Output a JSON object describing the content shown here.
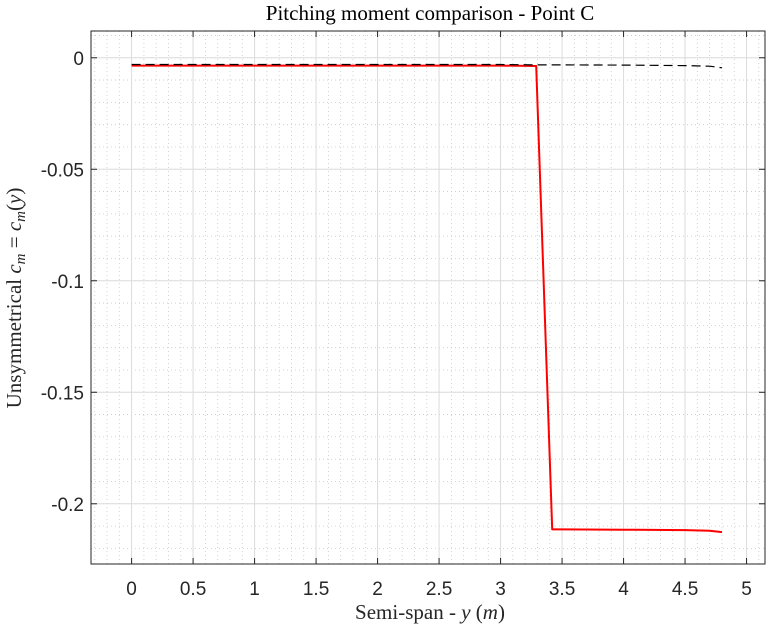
{
  "chart_data": {
    "type": "line",
    "title": "Pitching moment comparison - Point C",
    "xlabel": {
      "prefix": "Semi-span - ",
      "var": "y",
      "unit_open": " (",
      "unit": "m",
      "unit_close": ")"
    },
    "ylabel": {
      "prefix": "Unsymmetrical ",
      "lhs_base": "c",
      "lhs_sub": "m",
      "eq": " = ",
      "rhs_base": "c",
      "rhs_sub": "m",
      "arg_open": "(",
      "arg": "y",
      "arg_close": ")"
    },
    "xlim": [
      -0.33,
      5.15
    ],
    "ylim": [
      -0.227,
      0.012
    ],
    "x_ticks": [
      0,
      0.5,
      1,
      1.5,
      2,
      2.5,
      3,
      3.5,
      4,
      4.5,
      5
    ],
    "x_tick_labels": [
      "0",
      "0.5",
      "1",
      "1.5",
      "2",
      "2.5",
      "3",
      "3.5",
      "4",
      "4.5",
      "5"
    ],
    "y_ticks": [
      0,
      -0.05,
      -0.1,
      -0.15,
      -0.2
    ],
    "y_tick_labels": [
      "0",
      "-0.05",
      "-0.1",
      "-0.15",
      "-0.2"
    ],
    "grid": "major and minor",
    "series": [
      {
        "color": "#ff0000",
        "style": "solid",
        "x": [
          0,
          0.5,
          1,
          1.5,
          2,
          2.5,
          3,
          3.29,
          3.42,
          3.5,
          4,
          4.5,
          4.7,
          4.8
        ],
        "y": [
          -0.0035,
          -0.0035,
          -0.0035,
          -0.0035,
          -0.0035,
          -0.0035,
          -0.0035,
          -0.0037,
          -0.2115,
          -0.2115,
          -0.2116,
          -0.2118,
          -0.2121,
          -0.2127
        ]
      },
      {
        "color": "#000000",
        "style": "dashed",
        "x": [
          0,
          0.5,
          1,
          1.5,
          2,
          2.5,
          3,
          3.29,
          3.5,
          4,
          4.5,
          4.7,
          4.8
        ],
        "y": [
          -0.003,
          -0.003,
          -0.003,
          -0.003,
          -0.003,
          -0.003,
          -0.003,
          -0.0032,
          -0.0032,
          -0.0033,
          -0.0035,
          -0.0038,
          -0.0045
        ]
      }
    ]
  }
}
